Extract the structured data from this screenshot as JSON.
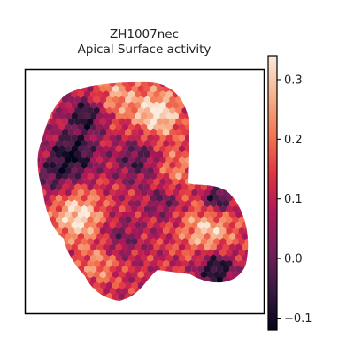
{
  "figure": {
    "title_line1": "ZH1007nec",
    "title_line2": "Apical Surface activity"
  },
  "chart_data": {
    "type": "heatmap",
    "subtype": "hexbin spatial map",
    "title": "ZH1007nec\nApical Surface activity",
    "xlabel": "",
    "ylabel": "",
    "axes_ticks_visible": false,
    "grid": false,
    "colormap": "rocket",
    "colorbar": {
      "range": [
        -0.12,
        0.34
      ],
      "ticks": [
        -0.1,
        0.0,
        0.1,
        0.2,
        0.3
      ],
      "tick_labels": [
        "−0.1",
        "0.0",
        "0.1",
        "0.2",
        "0.3"
      ],
      "orientation": "vertical",
      "position": "right"
    },
    "colors": [
      "#03051a",
      "#36193e",
      "#701f57",
      "#ad1759",
      "#e13342",
      "#f37651",
      "#f6b48f",
      "#faebdd"
    ]
  }
}
